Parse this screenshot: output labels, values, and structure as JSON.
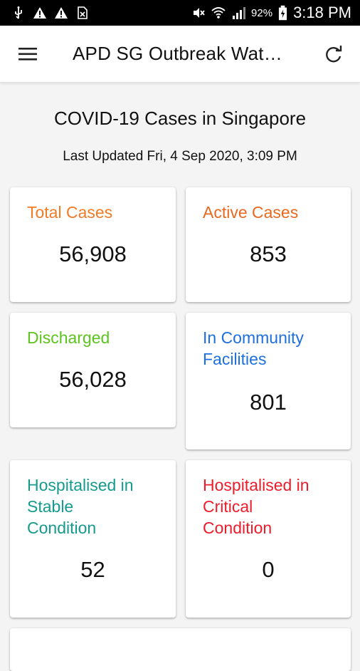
{
  "status_bar": {
    "battery": "92%",
    "time": "3:18 PM"
  },
  "app_bar": {
    "title": "APD SG Outbreak Wat…",
    "menu_icon": "hamburger-menu-icon",
    "refresh_icon": "refresh-icon"
  },
  "header": {
    "title": "COVID-19 Cases in Singapore",
    "last_updated": "Last Updated Fri, 4 Sep 2020, 3:09 PM"
  },
  "cards": {
    "total": {
      "label": "Total Cases",
      "value": "56,908",
      "color": "#f07a26"
    },
    "active": {
      "label": "Active Cases",
      "value": "853",
      "color": "#e8681f"
    },
    "discharged": {
      "label": "Discharged",
      "value": "56,028",
      "color": "#5cc41d"
    },
    "community": {
      "label_line1": "In Community",
      "label_line2": "Facilities",
      "value": "801",
      "color": "#1e6fe0"
    },
    "stable": {
      "label_line1": "Hospitalised in",
      "label_line2": "Stable",
      "label_line3": "Condition",
      "value": "52",
      "color": "#159a8c"
    },
    "critical": {
      "label_line1": "Hospitalised in",
      "label_line2": "Critical",
      "label_line3": "Condition",
      "value": "0",
      "color": "#ee1c2a"
    }
  }
}
